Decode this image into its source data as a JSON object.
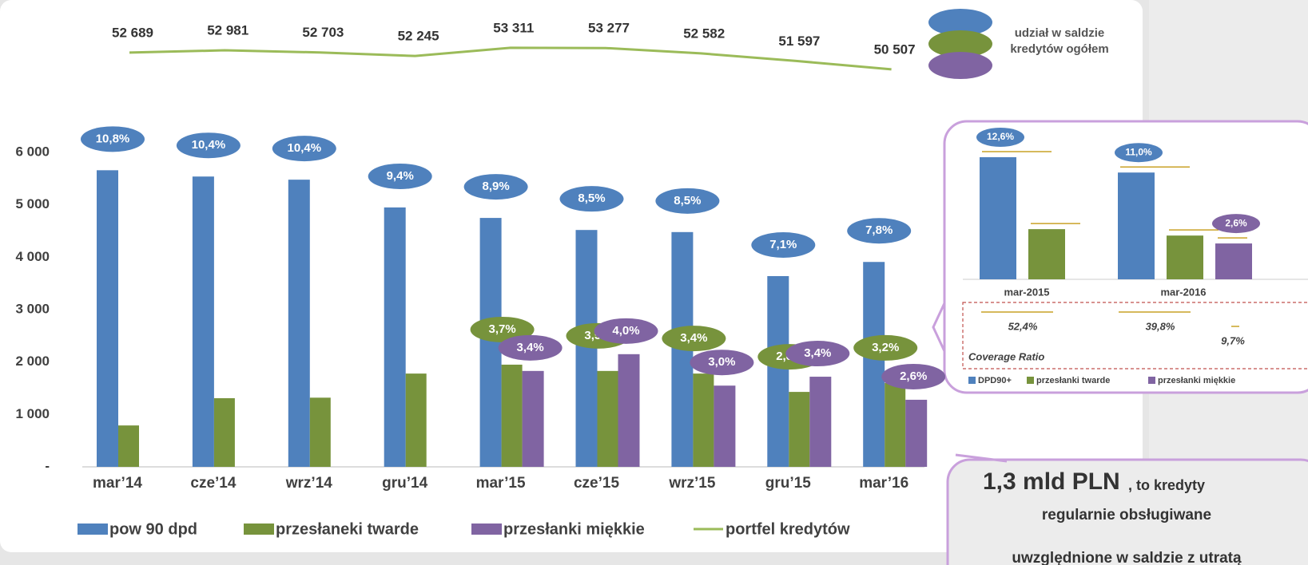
{
  "chart_data": [
    {
      "type": "bar",
      "categories": [
        "mar’14",
        "cze’14",
        "wrz’14",
        "gru’14",
        "mar’15",
        "cze’15",
        "wrz’15",
        "gru’15",
        "mar’16"
      ],
      "ylim": [
        0,
        6000
      ],
      "yticks": [
        {
          "value": 0,
          "label": "-"
        },
        {
          "value": 1000,
          "label": "1 000"
        },
        {
          "value": 2000,
          "label": "2 000"
        },
        {
          "value": 3000,
          "label": "3 000"
        },
        {
          "value": 4000,
          "label": "4 000"
        },
        {
          "value": 5000,
          "label": "5 000"
        },
        {
          "value": 6000,
          "label": "6 000"
        }
      ],
      "y2lim": [
        48000,
        56000
      ],
      "series": [
        {
          "name": "pow 90 dpd",
          "color": "#4f81bd",
          "values": [
            5660,
            5540,
            5480,
            4950,
            4750,
            4520,
            4480,
            3640,
            3910
          ],
          "share_labels": [
            "10,8%",
            "10,4%",
            "10,4%",
            "9,4%",
            "8,9%",
            "8,5%",
            "8,5%",
            "7,1%",
            "7,8%"
          ]
        },
        {
          "name": "przesłaneki twarde",
          "color": "#77933c",
          "values": [
            790,
            1310,
            1320,
            1780,
            1950,
            1830,
            1780,
            1430,
            1600
          ],
          "share_labels": [
            null,
            null,
            null,
            null,
            "3,7%",
            "3,5%",
            "3,4%",
            "2,8%",
            "3,2%"
          ]
        },
        {
          "name": "przesłanki miękkie",
          "color": "#8064a2",
          "values": [
            null,
            null,
            null,
            null,
            1830,
            2150,
            1550,
            1720,
            1280
          ],
          "share_labels": [
            null,
            null,
            null,
            null,
            "3,4%",
            "4,0%",
            "3,0%",
            "3,4%",
            "2,6%"
          ]
        },
        {
          "name": "portfel kredytów",
          "color": "#9bbb59",
          "axis": "y2",
          "values": [
            52689,
            52981,
            52703,
            52245,
            53311,
            53277,
            52582,
            51597,
            50507
          ],
          "value_labels": [
            "52 689",
            "52 981",
            "52 703",
            "52 245",
            "53 311",
            "53 277",
            "52 582",
            "51 597",
            "50 507"
          ]
        }
      ],
      "share_legend": [
        "udział w saldzie",
        "kredytów ogółem"
      ]
    },
    {
      "type": "bar",
      "categories": [
        "mar-2015",
        "mar-2016"
      ],
      "series": [
        {
          "name": "DPD90+",
          "color": "#4f81bd",
          "values": [
            4940,
            4320
          ],
          "share_labels": [
            "12,6%",
            "11,0%"
          ],
          "coverage_labels": [
            "52,4%",
            "39,8%"
          ]
        },
        {
          "name": "przesłanki twarde",
          "color": "#77933c",
          "values": [
            2030,
            1770
          ]
        },
        {
          "name": "przesłanki miękkie",
          "color": "#8064a2",
          "values": [
            null,
            1450
          ],
          "share_labels": [
            null,
            "2,6%"
          ],
          "coverage_labels": [
            null,
            "9,7%"
          ]
        }
      ],
      "coverage_title": "Coverage Ratio"
    }
  ],
  "callout": {
    "headline": "1,3 mld PLN",
    "suffix": ", to kredyty",
    "lines": [
      "regularnie obsługiwane",
      "uwzględnione w saldzie z utratą"
    ]
  }
}
